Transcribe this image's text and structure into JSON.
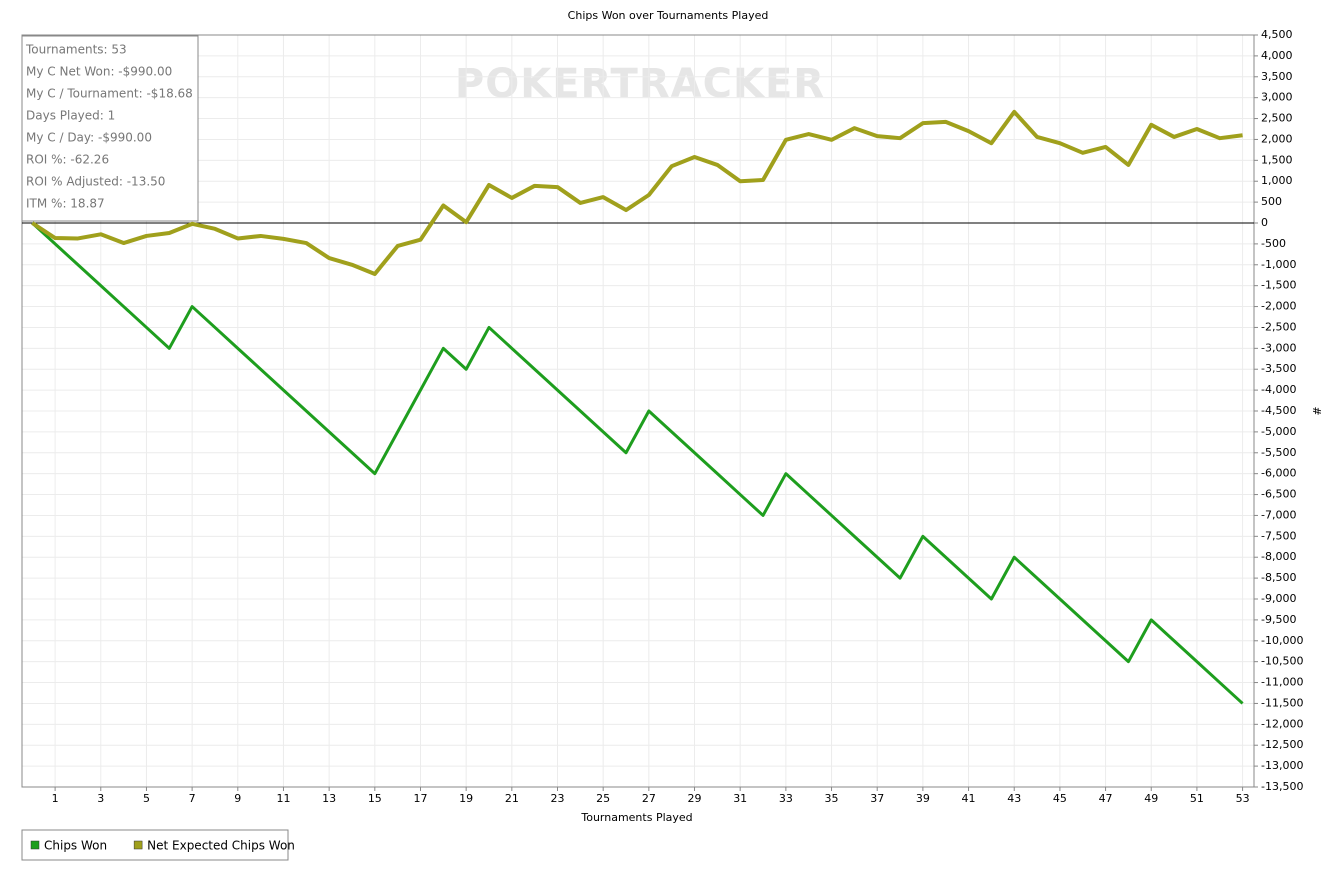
{
  "chart_data": {
    "type": "line",
    "title": "Chips Won over Tournaments Played",
    "xlabel": "Tournaments Played",
    "ylabel": "#",
    "watermark": "POKERTRACKER",
    "annotations": [
      "Tournaments: 53",
      "My C Net Won: -$990.00",
      "My C / Tournament: -$18.68",
      "Days Played: 1",
      "My C / Day: -$990.00",
      "ROI %: -62.26",
      "ROI % Adjusted: -13.50",
      "ITM %: 18.87"
    ],
    "x": [
      0,
      1,
      2,
      3,
      4,
      5,
      6,
      7,
      8,
      9,
      10,
      11,
      12,
      13,
      14,
      15,
      16,
      17,
      18,
      19,
      20,
      21,
      22,
      23,
      24,
      25,
      26,
      27,
      28,
      29,
      30,
      31,
      32,
      33,
      34,
      35,
      36,
      37,
      38,
      39,
      40,
      41,
      42,
      43,
      44,
      45,
      46,
      47,
      48,
      49,
      50,
      51,
      52,
      53
    ],
    "series": [
      {
        "name": "Chips Won",
        "color": "#1e9e1e",
        "values": [
          0,
          -500,
          -1000,
          -1500,
          -2000,
          -2500,
          -3000,
          -2000,
          -2500,
          -3000,
          -3500,
          -4000,
          -4500,
          -5000,
          -5500,
          -6000,
          -5000,
          -4000,
          -3000,
          -3500,
          -2500,
          -3000,
          -3500,
          -4000,
          -4500,
          -5000,
          -5500,
          -4500,
          -5000,
          -5500,
          -6000,
          -6500,
          -7000,
          -6000,
          -6500,
          -7000,
          -7500,
          -8000,
          -8500,
          -7500,
          -8000,
          -8500,
          -9000,
          -8000,
          -8500,
          -9000,
          -9500,
          -10000,
          -10500,
          -9500,
          -10000,
          -10500,
          -11000,
          -11500
        ]
      },
      {
        "name": "Net Expected Chips Won",
        "color": "#a0a01c",
        "values": [
          0,
          -360,
          -370,
          -270,
          -480,
          -310,
          -240,
          -20,
          -140,
          -370,
          -310,
          -380,
          -480,
          -840,
          -1000,
          -1220,
          -550,
          -400,
          420,
          20,
          910,
          600,
          890,
          860,
          480,
          620,
          310,
          670,
          1360,
          1580,
          1390,
          1000,
          1030,
          1990,
          2130,
          1990,
          2270,
          2080,
          2030,
          2390,
          2420,
          2200,
          1910,
          2660,
          2060,
          1910,
          1680,
          1820,
          1390,
          2350,
          2060,
          2250,
          2030,
          2100
        ]
      }
    ],
    "xlim": [
      -0.45,
      53.5
    ],
    "xticks": [
      1,
      3,
      5,
      7,
      9,
      11,
      13,
      15,
      17,
      19,
      21,
      23,
      25,
      27,
      29,
      31,
      33,
      35,
      37,
      39,
      41,
      43,
      45,
      47,
      49,
      51,
      53
    ],
    "ylim": [
      -13500,
      4500
    ],
    "yticks": [
      {
        "value": 4500,
        "label": "4,500"
      },
      {
        "value": 4000,
        "label": "4,000"
      },
      {
        "value": 3500,
        "label": "3,500"
      },
      {
        "value": 3000,
        "label": "3,000"
      },
      {
        "value": 2500,
        "label": "2,500"
      },
      {
        "value": 2000,
        "label": "2,000"
      },
      {
        "value": 1500,
        "label": "1,500"
      },
      {
        "value": 1000,
        "label": "1,000"
      },
      500,
      0,
      -500,
      {
        "value": -1000,
        "label": "-1,000"
      },
      {
        "value": -1500,
        "label": "-1,500"
      },
      {
        "value": -2000,
        "label": "-2,000"
      },
      {
        "value": -2500,
        "label": "-2,500"
      },
      {
        "value": -3000,
        "label": "-3,000"
      },
      {
        "value": -3500,
        "label": "-3,500"
      },
      {
        "value": -4000,
        "label": "-4,000"
      },
      {
        "value": -4500,
        "label": "-4,500"
      },
      {
        "value": -5000,
        "label": "-5,000"
      },
      {
        "value": -5500,
        "label": "-5,500"
      },
      {
        "value": -6000,
        "label": "-6,000"
      },
      {
        "value": -6500,
        "label": "-6,500"
      },
      {
        "value": -7000,
        "label": "-7,000"
      },
      {
        "value": -7500,
        "label": "-7,500"
      },
      {
        "value": -8000,
        "label": "-8,000"
      },
      {
        "value": -8500,
        "label": "-8,500"
      },
      {
        "value": -9000,
        "label": "-9,000"
      },
      {
        "value": -9500,
        "label": "-9,500"
      },
      {
        "value": -10000,
        "label": "-10,000"
      },
      {
        "value": -10500,
        "label": "-10,500"
      },
      {
        "value": -11000,
        "label": "-11,000"
      },
      {
        "value": -11500,
        "label": "-11,500"
      },
      {
        "value": -12000,
        "label": "-12,000"
      },
      {
        "value": -12500,
        "label": "-12,500"
      },
      {
        "value": -13000,
        "label": "-13,000"
      },
      {
        "value": -13500,
        "label": "-13,500"
      }
    ],
    "grid": true,
    "legend": "bottom-left"
  }
}
